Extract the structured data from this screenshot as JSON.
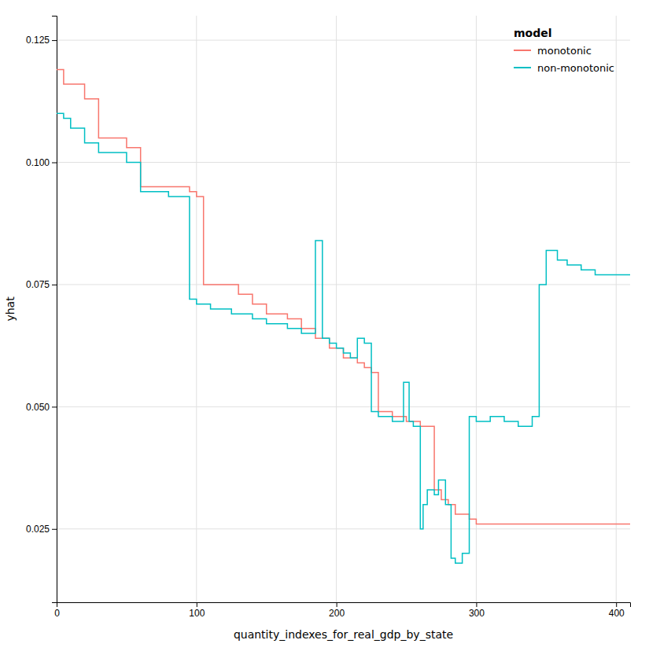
{
  "chart_data": {
    "type": "line",
    "xlabel": "quantity_indexes_for_real_gdp_by_state",
    "ylabel": "yhat",
    "xlim": [
      0,
      410
    ],
    "ylim": [
      0.01,
      0.13
    ],
    "xticks": [
      0,
      100,
      200,
      300,
      400
    ],
    "yticks": [
      0.025,
      {
        "value": 0.05,
        "label": "0.050"
      },
      0.075,
      {
        "value": 0.1,
        "label": "0.100"
      },
      0.125
    ],
    "grid": true,
    "legend": "top-right",
    "legend_title": "model",
    "series": [
      {
        "name": "monotonic",
        "color": "#F8766D",
        "x": [
          0,
          5,
          5,
          20,
          20,
          30,
          30,
          50,
          50,
          60,
          60,
          95,
          95,
          100,
          100,
          105,
          105,
          130,
          130,
          140,
          140,
          150,
          150,
          165,
          165,
          175,
          175,
          185,
          185,
          195,
          195,
          205,
          205,
          215,
          215,
          220,
          220,
          225,
          225,
          230,
          230,
          240,
          240,
          250,
          250,
          260,
          260,
          270,
          270,
          275,
          275,
          280,
          280,
          285,
          285,
          295,
          295,
          300,
          300,
          345,
          345,
          350,
          350,
          410
        ],
        "values": [
          0.119,
          0.119,
          0.116,
          0.116,
          0.113,
          0.113,
          0.105,
          0.105,
          0.103,
          0.103,
          0.095,
          0.095,
          0.094,
          0.094,
          0.093,
          0.093,
          0.075,
          0.075,
          0.073,
          0.073,
          0.071,
          0.071,
          0.069,
          0.069,
          0.068,
          0.068,
          0.066,
          0.066,
          0.064,
          0.064,
          0.062,
          0.062,
          0.06,
          0.06,
          0.059,
          0.059,
          0.058,
          0.058,
          0.057,
          0.057,
          0.049,
          0.049,
          0.048,
          0.048,
          0.047,
          0.047,
          0.046,
          0.046,
          0.033,
          0.033,
          0.031,
          0.031,
          0.03,
          0.03,
          0.028,
          0.028,
          0.027,
          0.027,
          0.026,
          0.026,
          0.026,
          0.026,
          0.026,
          0.026
        ]
      },
      {
        "name": "non-monotonic",
        "color": "#00BFC4",
        "x": [
          0,
          5,
          5,
          10,
          10,
          20,
          20,
          30,
          30,
          50,
          50,
          60,
          60,
          80,
          80,
          95,
          95,
          100,
          100,
          110,
          110,
          125,
          125,
          140,
          140,
          150,
          150,
          165,
          165,
          175,
          175,
          185,
          185,
          190,
          190,
          195,
          195,
          200,
          200,
          205,
          205,
          210,
          210,
          215,
          215,
          220,
          220,
          225,
          225,
          230,
          230,
          240,
          240,
          248,
          248,
          252,
          252,
          255,
          255,
          260,
          260,
          262,
          262,
          265,
          265,
          270,
          270,
          273,
          273,
          278,
          278,
          282,
          282,
          285,
          285,
          290,
          290,
          295,
          295,
          300,
          300,
          310,
          310,
          320,
          320,
          330,
          330,
          340,
          340,
          345,
          345,
          350,
          350,
          358,
          358,
          365,
          365,
          375,
          375,
          385,
          385,
          395,
          395,
          405,
          405,
          410
        ],
        "values": [
          0.11,
          0.11,
          0.109,
          0.109,
          0.107,
          0.107,
          0.104,
          0.104,
          0.102,
          0.102,
          0.1,
          0.1,
          0.094,
          0.094,
          0.093,
          0.093,
          0.072,
          0.072,
          0.071,
          0.071,
          0.07,
          0.07,
          0.069,
          0.069,
          0.068,
          0.068,
          0.067,
          0.067,
          0.066,
          0.066,
          0.065,
          0.065,
          0.084,
          0.084,
          0.064,
          0.064,
          0.063,
          0.063,
          0.062,
          0.062,
          0.061,
          0.061,
          0.06,
          0.06,
          0.064,
          0.064,
          0.063,
          0.063,
          0.049,
          0.049,
          0.048,
          0.048,
          0.047,
          0.047,
          0.055,
          0.055,
          0.047,
          0.047,
          0.046,
          0.046,
          0.025,
          0.025,
          0.03,
          0.03,
          0.033,
          0.033,
          0.032,
          0.032,
          0.035,
          0.035,
          0.03,
          0.03,
          0.019,
          0.019,
          0.018,
          0.018,
          0.02,
          0.02,
          0.048,
          0.048,
          0.047,
          0.047,
          0.048,
          0.048,
          0.047,
          0.047,
          0.046,
          0.046,
          0.048,
          0.048,
          0.075,
          0.075,
          0.082,
          0.082,
          0.08,
          0.08,
          0.079,
          0.079,
          0.078,
          0.078,
          0.077,
          0.077,
          0.077,
          0.077,
          0.077,
          0.077
        ]
      }
    ]
  }
}
